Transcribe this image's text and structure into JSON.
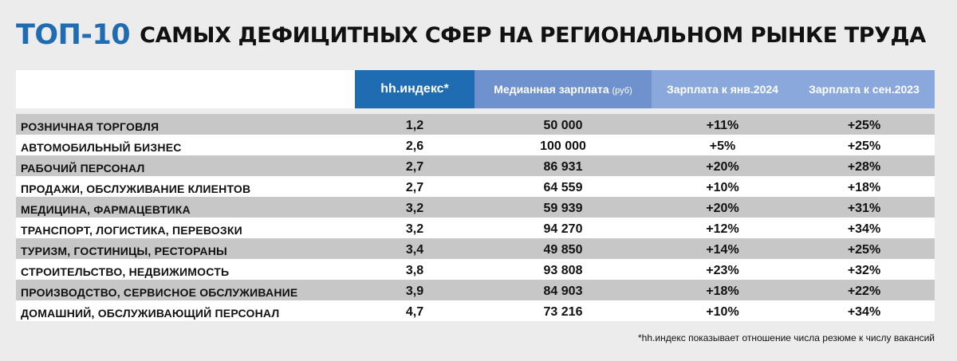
{
  "title": {
    "accent": "ТОП-10",
    "rest": "САМЫХ ДЕФИЦИТНЫХ СФЕР НА РЕГИОНАЛЬНОМ РЫНКЕ ТРУДА"
  },
  "table": {
    "headers": {
      "category": "",
      "hh_index": "hh.индекс*",
      "median_salary": "Медианная зарплата",
      "median_salary_unit": "(руб)",
      "salary_vs_jan2024": "Зарплата к янв.2024",
      "salary_vs_sep2023": "Зарплата к сен.2023"
    },
    "rows": [
      {
        "category": "РОЗНИЧНАЯ ТОРГОВЛЯ",
        "hh_index": "1,2",
        "median_salary": "50 000",
        "vs_jan2024": "+11%",
        "vs_sep2023": "+25%"
      },
      {
        "category": "АВТОМОБИЛЬНЫЙ БИЗНЕС",
        "hh_index": "2,6",
        "median_salary": "100 000",
        "vs_jan2024": "+5%",
        "vs_sep2023": "+25%"
      },
      {
        "category": "РАБОЧИЙ ПЕРСОНАЛ",
        "hh_index": "2,7",
        "median_salary": "86 931",
        "vs_jan2024": "+20%",
        "vs_sep2023": "+28%"
      },
      {
        "category": "ПРОДАЖИ, ОБСЛУЖИВАНИЕ КЛИЕНТОВ",
        "hh_index": "2,7",
        "median_salary": "64 559",
        "vs_jan2024": "+10%",
        "vs_sep2023": "+18%"
      },
      {
        "category": "МЕДИЦИНА, ФАРМАЦЕВТИКА",
        "hh_index": "3,2",
        "median_salary": "59 939",
        "vs_jan2024": "+20%",
        "vs_sep2023": "+31%"
      },
      {
        "category": "ТРАНСПОРТ, ЛОГИСТИКА, ПЕРЕВОЗКИ",
        "hh_index": "3,2",
        "median_salary": "94 270",
        "vs_jan2024": "+12%",
        "vs_sep2023": "+34%"
      },
      {
        "category": "ТУРИЗМ, ГОСТИНИЦЫ, РЕСТОРАНЫ",
        "hh_index": "3,4",
        "median_salary": "49 850",
        "vs_jan2024": "+14%",
        "vs_sep2023": "+25%"
      },
      {
        "category": "СТРОИТЕЛЬСТВО, НЕДВИЖИМОСТЬ",
        "hh_index": "3,8",
        "median_salary": "93 808",
        "vs_jan2024": "+23%",
        "vs_sep2023": "+32%"
      },
      {
        "category": "ПРОИЗВОДСТВО, СЕРВИСНОЕ ОБСЛУЖИВАНИЕ",
        "hh_index": "3,9",
        "median_salary": "84 903",
        "vs_jan2024": "+18%",
        "vs_sep2023": "+22%"
      },
      {
        "category": "ДОМАШНИЙ, ОБСЛУЖИВАЮЩИЙ ПЕРСОНАЛ",
        "hh_index": "4,7",
        "median_salary": "73 216",
        "vs_jan2024": "+10%",
        "vs_sep2023": "+34%"
      }
    ]
  },
  "footnote": "*hh.индекс показывает отношение числа резюме к числу вакансий",
  "colors": {
    "background": "#ececec",
    "accent_blue": "#1f6cb3",
    "header_median": "#6f91cd",
    "header_light": "#8aa8dc",
    "row_striped": "#c7c7c7",
    "row_plain": "#ffffff"
  }
}
